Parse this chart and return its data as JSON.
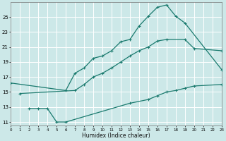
{
  "title": "",
  "xlabel": "Humidex (Indice chaleur)",
  "bg_color": "#cce8e8",
  "grid_color": "#ffffff",
  "line_color": "#1a7a6e",
  "line1_x": [
    0,
    6,
    7,
    8,
    9,
    10,
    11,
    12,
    13,
    14,
    15,
    16,
    17,
    18,
    19,
    23
  ],
  "line1_y": [
    16.2,
    15.2,
    17.5,
    18.2,
    19.5,
    19.8,
    20.5,
    21.7,
    22.0,
    23.8,
    25.1,
    26.3,
    26.6,
    25.1,
    24.2,
    18.0
  ],
  "line2_x": [
    1,
    7,
    8,
    9,
    10,
    11,
    12,
    13,
    14,
    15,
    16,
    17,
    19,
    20,
    23
  ],
  "line2_y": [
    14.8,
    15.2,
    16.0,
    17.0,
    17.5,
    18.2,
    19.0,
    19.8,
    20.5,
    21.0,
    21.8,
    22.0,
    22.0,
    20.8,
    20.5
  ],
  "line3_x": [
    2,
    3,
    4,
    5,
    6,
    13,
    15,
    16,
    17,
    18,
    19,
    20,
    23
  ],
  "line3_y": [
    12.8,
    12.8,
    12.8,
    11.0,
    11.0,
    13.5,
    14.0,
    14.5,
    15.0,
    15.2,
    15.5,
    15.8,
    16.0
  ],
  "xlim": [
    0,
    23
  ],
  "ylim": [
    10.5,
    27.0
  ],
  "yticks": [
    11,
    13,
    15,
    17,
    19,
    21,
    23,
    25
  ],
  "xticks": [
    0,
    1,
    2,
    3,
    4,
    5,
    6,
    7,
    8,
    9,
    10,
    11,
    12,
    13,
    14,
    15,
    16,
    17,
    18,
    19,
    20,
    21,
    22,
    23
  ]
}
